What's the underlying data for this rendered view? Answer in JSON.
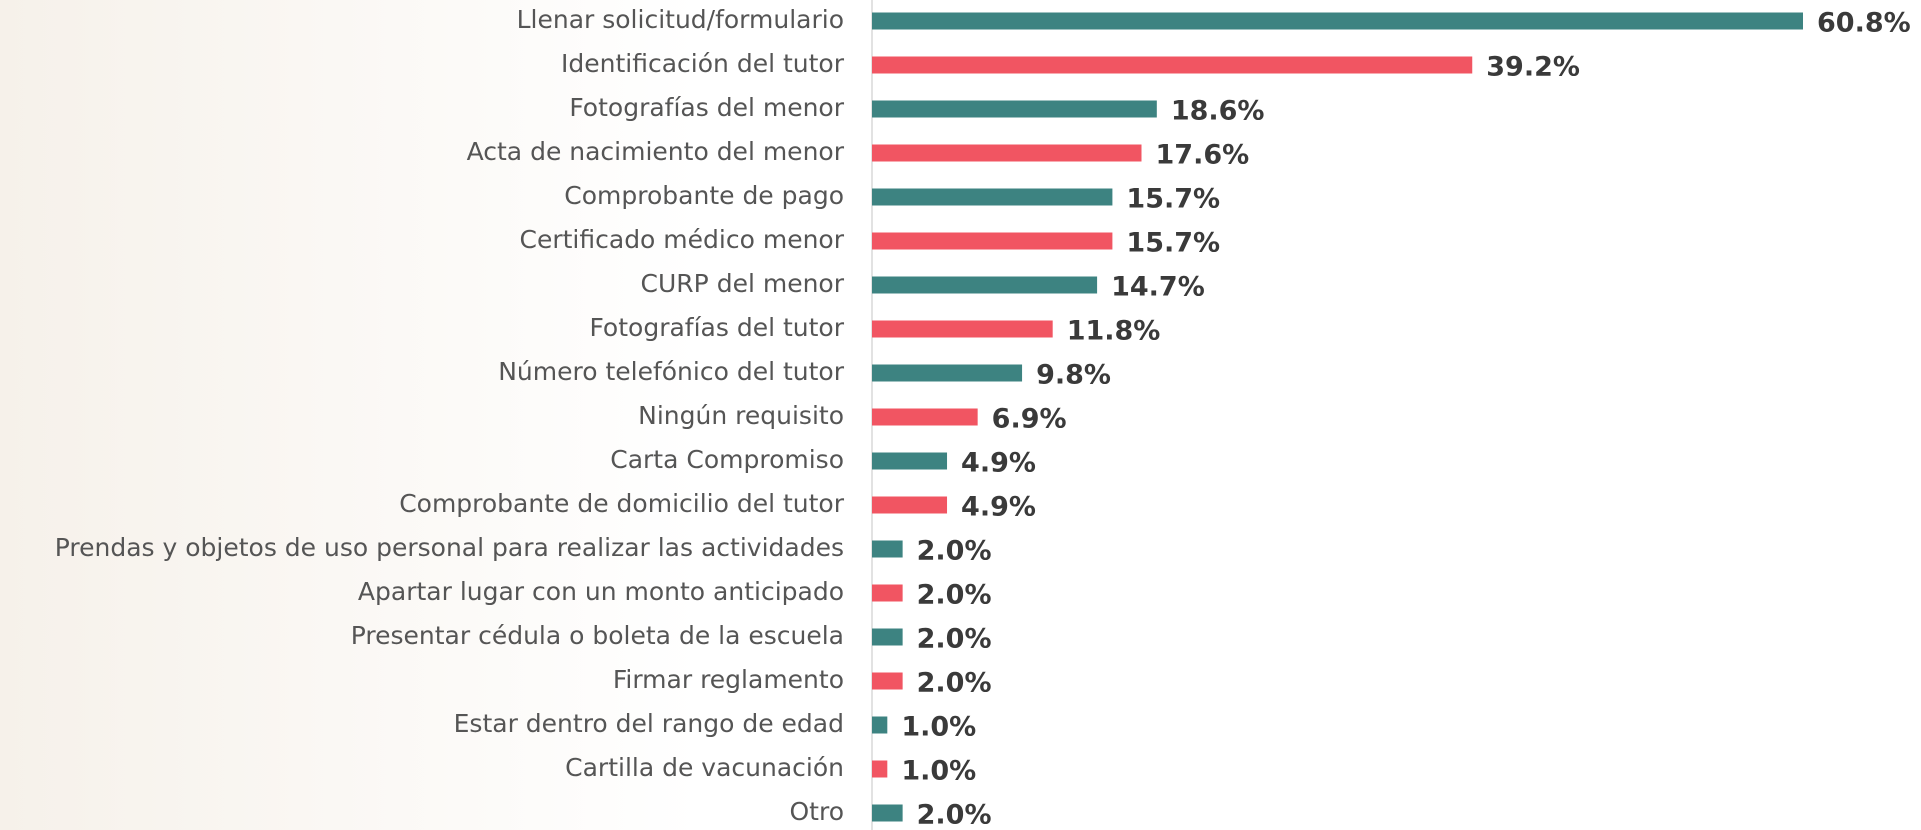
{
  "chart_data": {
    "type": "barh",
    "categories": [
      "Llenar solicitud/formulario",
      "Identificación del tutor",
      "Fotografías del menor",
      "Acta de nacimiento del menor",
      "Comprobante de pago",
      "Certificado médico menor",
      "CURP del menor",
      "Fotografías del tutor",
      "Número telefónico del tutor",
      "Ningún requisito",
      "Carta Compromiso",
      "Comprobante de domicilio del tutor",
      "Prendas y objetos de uso personal para realizar las actividades",
      "Apartar lugar con un monto anticipado",
      "Presentar cédula o boleta de la escuela",
      "Firmar reglamento",
      "Estar dentro del rango de edad",
      "Cartilla de vacunación",
      "Otro"
    ],
    "values": [
      60.8,
      39.2,
      18.6,
      17.6,
      15.7,
      15.7,
      14.7,
      11.8,
      9.8,
      6.9,
      4.9,
      4.9,
      2.0,
      2.0,
      2.0,
      2.0,
      1.0,
      1.0,
      2.0
    ],
    "value_labels": [
      "60.8%",
      "39.2%",
      "18.6%",
      "17.6%",
      "15.7%",
      "15.7%",
      "14.7%",
      "11.8%",
      "9.8%",
      "6.9%",
      "4.9%",
      "4.9%",
      "2.0%",
      "2.0%",
      "2.0%",
      "2.0%",
      "1.0%",
      "1.0%",
      "2.0%"
    ],
    "colors": [
      "#3d8381",
      "#f15562",
      "#3d8381",
      "#f15562",
      "#3d8381",
      "#f15562",
      "#3d8381",
      "#f15562",
      "#3d8381",
      "#f15562",
      "#3d8381",
      "#f15562",
      "#3d8381",
      "#f15562",
      "#3d8381",
      "#f15562",
      "#3d8381",
      "#f15562",
      "#3d8381"
    ]
  }
}
